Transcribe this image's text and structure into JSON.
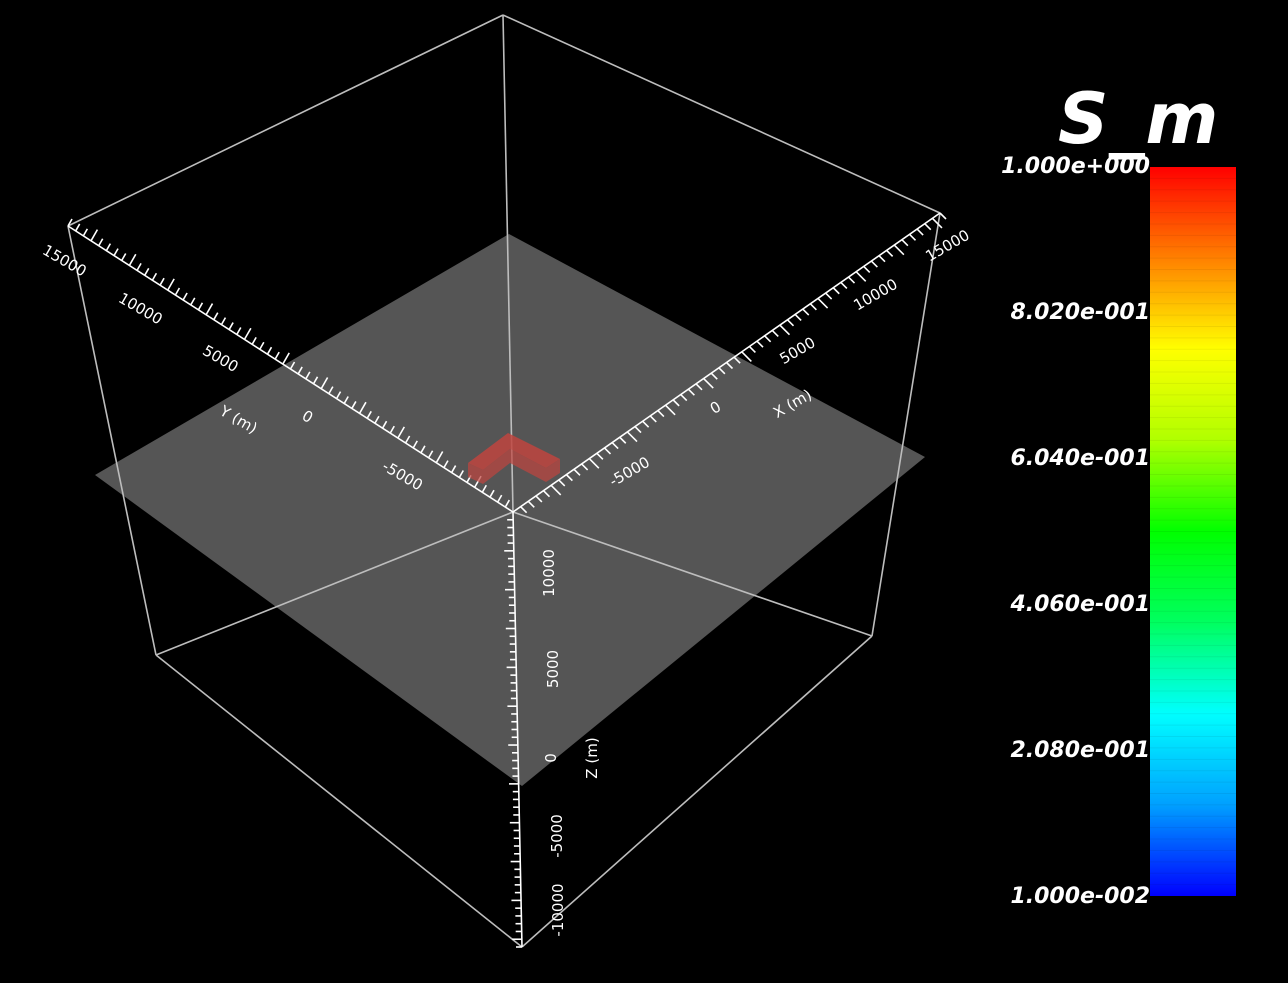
{
  "scene": {
    "background": "#000000",
    "outline_color": "#bdbdbd",
    "plane_color": "#5a5a5a",
    "object_color": "#c0453f",
    "axes": {
      "x": {
        "title": "X (m)",
        "ticks": [
          "-5000",
          "0",
          "5000",
          "10000",
          "15000"
        ]
      },
      "y": {
        "title": "Y (m)",
        "ticks": [
          "-5000",
          "0",
          "5000",
          "10000",
          "15000"
        ]
      },
      "z": {
        "title": "Z (m)",
        "ticks": [
          "10000",
          "5000",
          "0",
          "-5000",
          "-10000"
        ]
      }
    }
  },
  "colorbar": {
    "title": "S_m",
    "labels": [
      "1.000e+000",
      "8.020e-001",
      "6.040e-001",
      "4.060e-001",
      "2.080e-001",
      "1.000e-002"
    ],
    "colors": [
      "#0000ff",
      "#00a0ff",
      "#00ffff",
      "#00ff60",
      "#00ff00",
      "#b0ff00",
      "#ffff00",
      "#ff8000",
      "#ff0000"
    ]
  }
}
